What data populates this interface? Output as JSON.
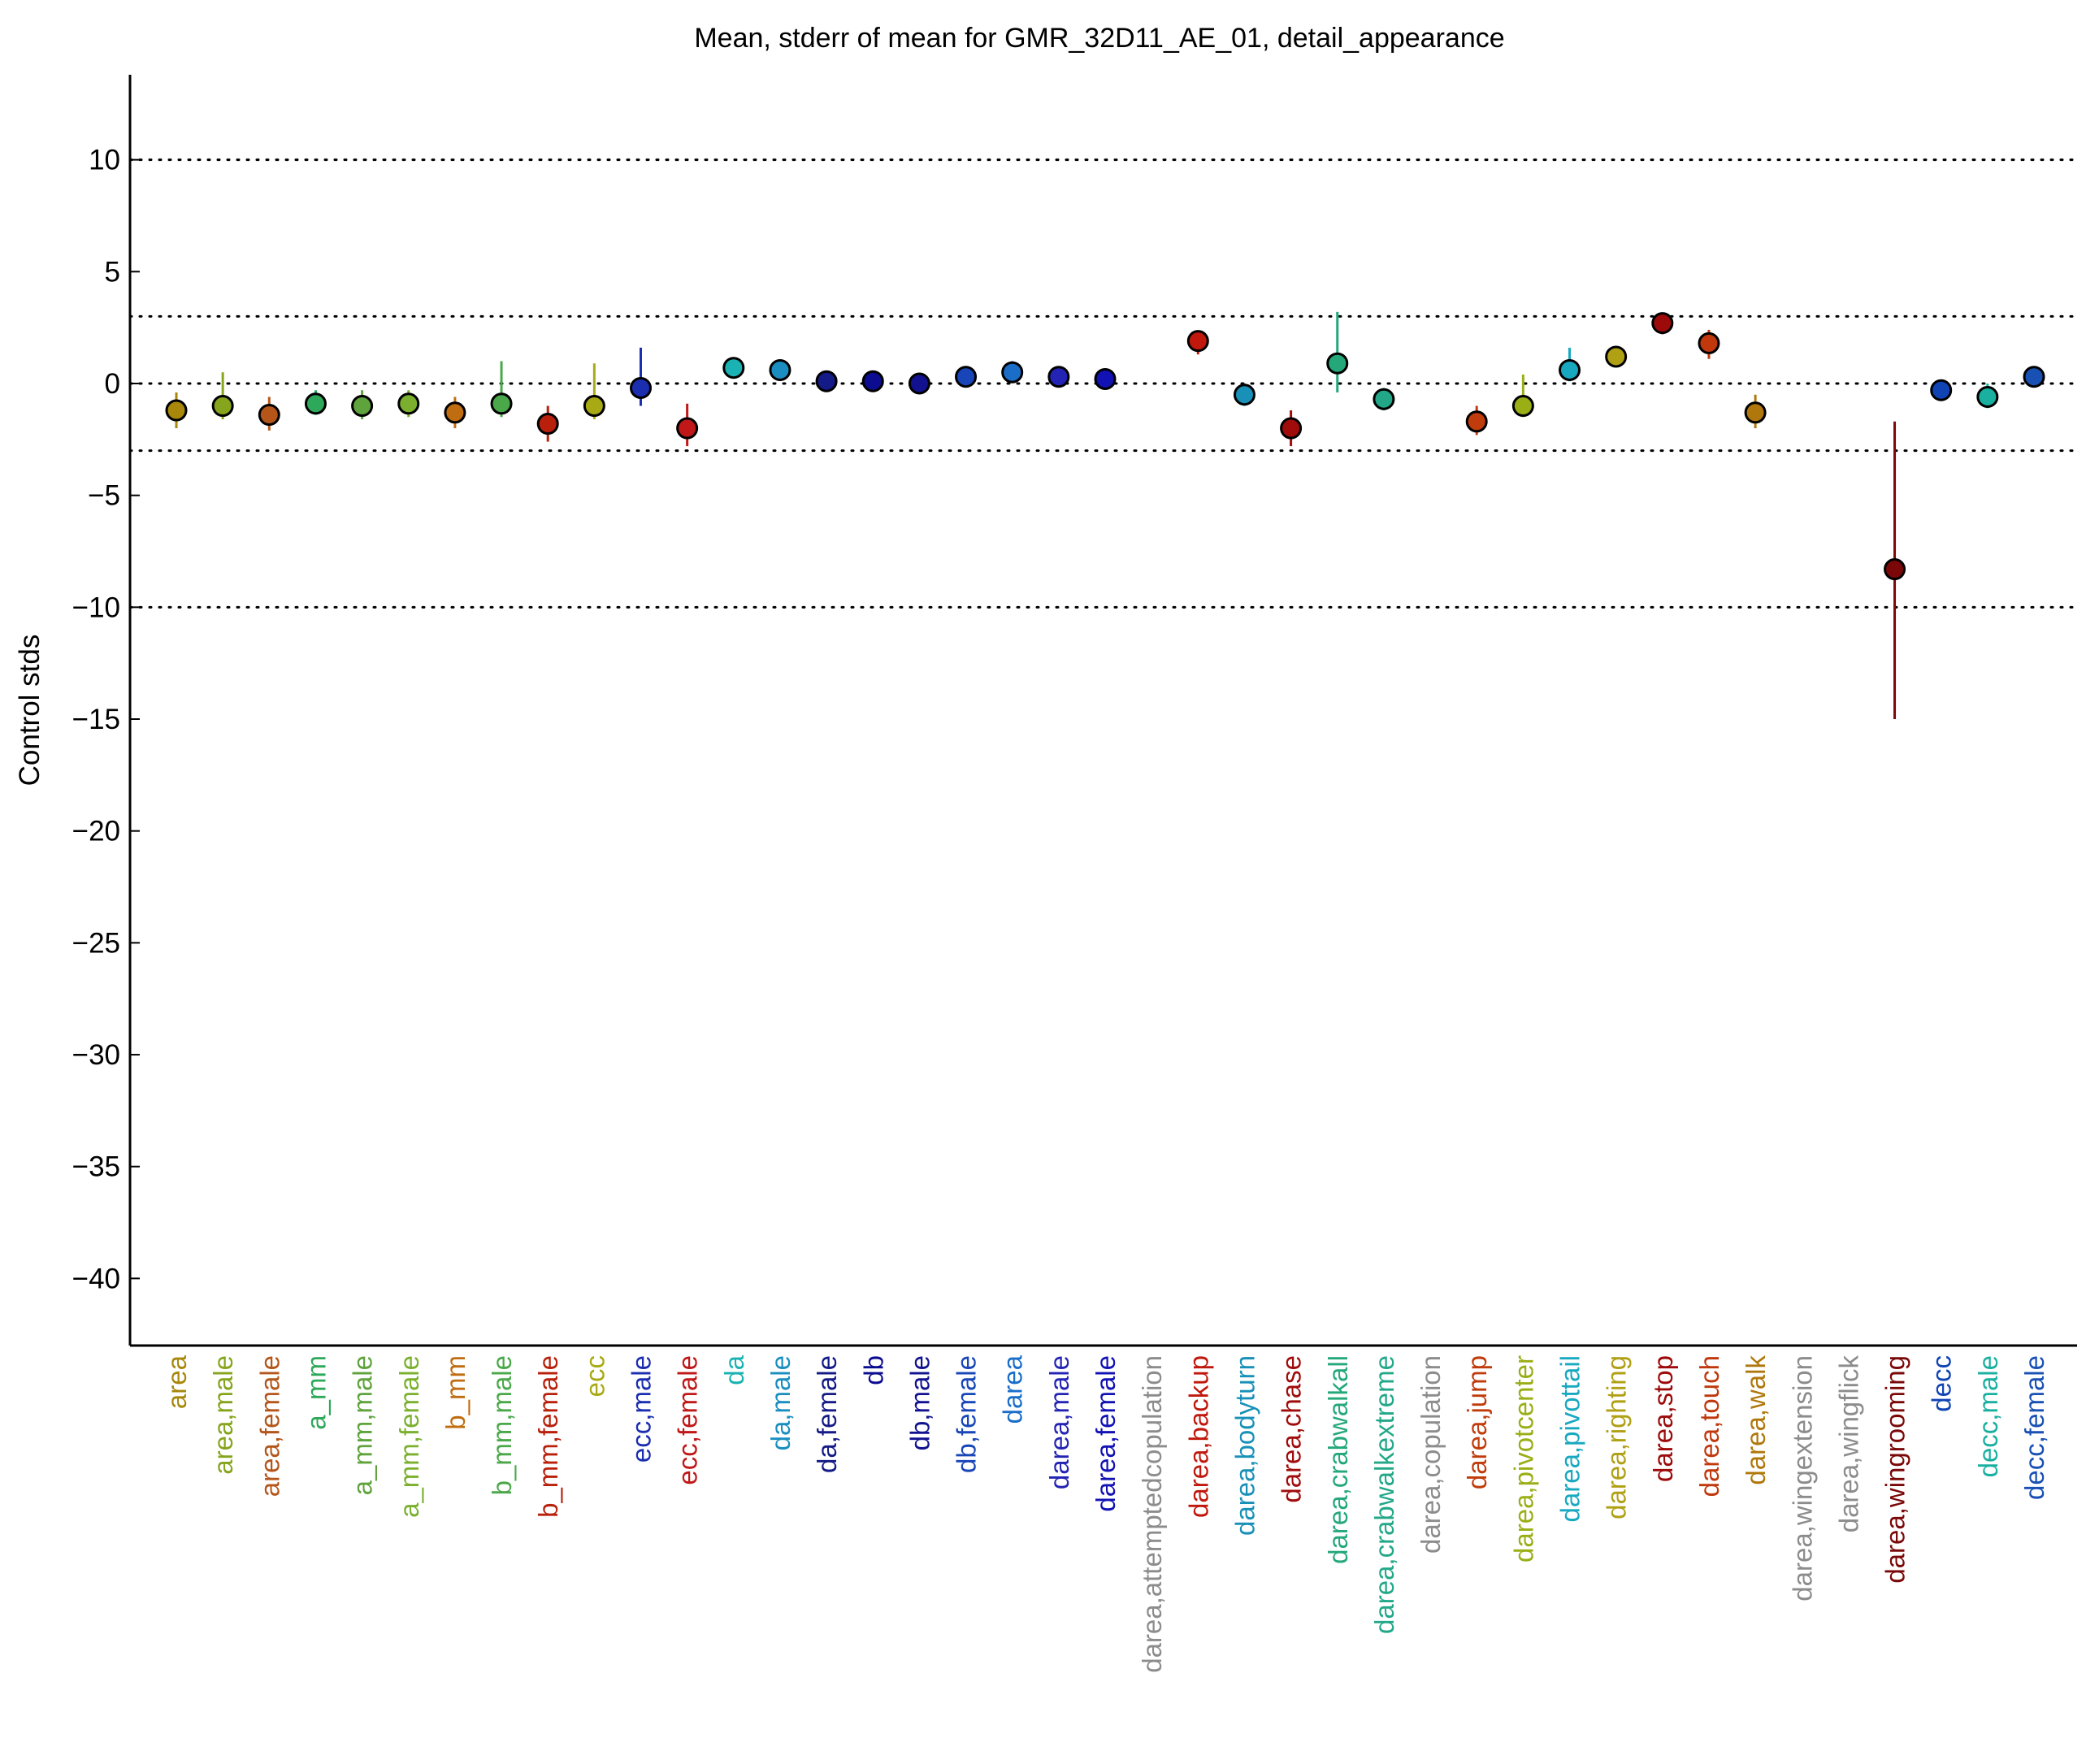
{
  "chart_data": {
    "type": "scatter",
    "title": "Mean, stderr of mean for GMR_32D11_AE_01, detail_appearance",
    "xlabel": "",
    "ylabel": "Control stds",
    "ylim": [
      -43,
      13.8
    ],
    "yticks": [
      10,
      5,
      0,
      -5,
      -10,
      -15,
      -20,
      -25,
      -30,
      -35,
      -40
    ],
    "ytick_labels": [
      "10",
      "5",
      "0",
      "−5",
      "−10",
      "−15",
      "−20",
      "−25",
      "−30",
      "−35",
      "−40"
    ],
    "reference_lines": [
      10,
      3,
      0,
      -3,
      -10
    ],
    "grid": false,
    "categories": [
      "area",
      "area,male",
      "area,female",
      "a_mm",
      "a_mm,male",
      "a_mm,female",
      "b_mm",
      "b_mm,male",
      "b_mm,female",
      "ecc",
      "ecc,male",
      "ecc,female",
      "da",
      "da,male",
      "da,female",
      "db",
      "db,male",
      "db,female",
      "darea",
      "darea,male",
      "darea,female",
      "darea,attemptedcopulation",
      "darea,backup",
      "darea,bodyturn",
      "darea,chase",
      "darea,crabwalkall",
      "darea,crabwalkextreme",
      "darea,copulation",
      "darea,jump",
      "darea,pivotcenter",
      "darea,pivottail",
      "darea,righting",
      "darea,stop",
      "darea,touch",
      "darea,walk",
      "darea,wingextension",
      "darea,wingflick",
      "darea,wingrooming",
      "decc",
      "decc,male",
      "decc,female"
    ],
    "colors": [
      "#a8870a",
      "#86a51c",
      "#b4561a",
      "#2ea85a",
      "#5fa33c",
      "#7ab02e",
      "#c06c10",
      "#4aa84a",
      "#b8200c",
      "#a8aa14",
      "#1c2eb0",
      "#c01818",
      "#1ab2b2",
      "#1a8ec0",
      "#141a86",
      "#0c0c90",
      "#121290",
      "#1846b8",
      "#1a6ec8",
      "#2424b4",
      "#1212b4",
      "#8c8c8c",
      "#c0180c",
      "#1890b8",
      "#a00c0c",
      "#24a87a",
      "#22a888",
      "#8c8c8c",
      "#c03c0c",
      "#9aae16",
      "#18a8c0",
      "#b0a014",
      "#9c0a0a",
      "#c0380c",
      "#b0780c",
      "#8c8c8c",
      "#8c8c8c",
      "#7a0808",
      "#1044b4",
      "#1ab0a0",
      "#1850b4"
    ],
    "series": [
      {
        "name": "mean",
        "values": [
          -1.2,
          -1.0,
          -1.4,
          -0.9,
          -1.0,
          -0.9,
          -1.3,
          -0.9,
          -1.8,
          -1.0,
          -0.2,
          -2.0,
          0.7,
          0.6,
          0.1,
          0.1,
          0.0,
          0.3,
          0.5,
          0.3,
          0.2,
          null,
          1.9,
          -0.5,
          -2.0,
          0.9,
          -0.7,
          null,
          -1.7,
          -1.0,
          0.6,
          1.2,
          2.7,
          1.8,
          -1.3,
          null,
          null,
          -8.3,
          -0.3,
          -0.6,
          0.3
        ]
      },
      {
        "name": "stderr_low",
        "values": [
          -2.0,
          -1.6,
          -2.1,
          -1.4,
          -1.6,
          -1.5,
          -2.0,
          -1.5,
          -2.6,
          -1.6,
          -1.0,
          -2.8,
          0.3,
          0.2,
          -0.2,
          -0.3,
          -0.4,
          0.0,
          0.1,
          -0.1,
          -0.1,
          null,
          1.3,
          -1.0,
          -2.8,
          -0.4,
          -1.2,
          null,
          -2.3,
          -1.5,
          0.1,
          0.8,
          2.2,
          1.1,
          -2.0,
          null,
          null,
          -15.0,
          -0.7,
          -1.1,
          -0.1
        ]
      },
      {
        "name": "stderr_high",
        "values": [
          -0.4,
          0.5,
          -0.6,
          -0.3,
          -0.3,
          -0.3,
          -0.6,
          1.0,
          -1.0,
          0.9,
          1.6,
          -0.9,
          1.1,
          1.0,
          0.4,
          0.5,
          0.4,
          0.6,
          1.0,
          0.7,
          0.5,
          null,
          2.3,
          0.0,
          -1.2,
          3.2,
          -0.2,
          null,
          -1.0,
          0.4,
          1.6,
          1.6,
          3.1,
          2.4,
          -0.5,
          null,
          null,
          -1.7,
          0.1,
          0.0,
          0.7
        ]
      }
    ]
  }
}
